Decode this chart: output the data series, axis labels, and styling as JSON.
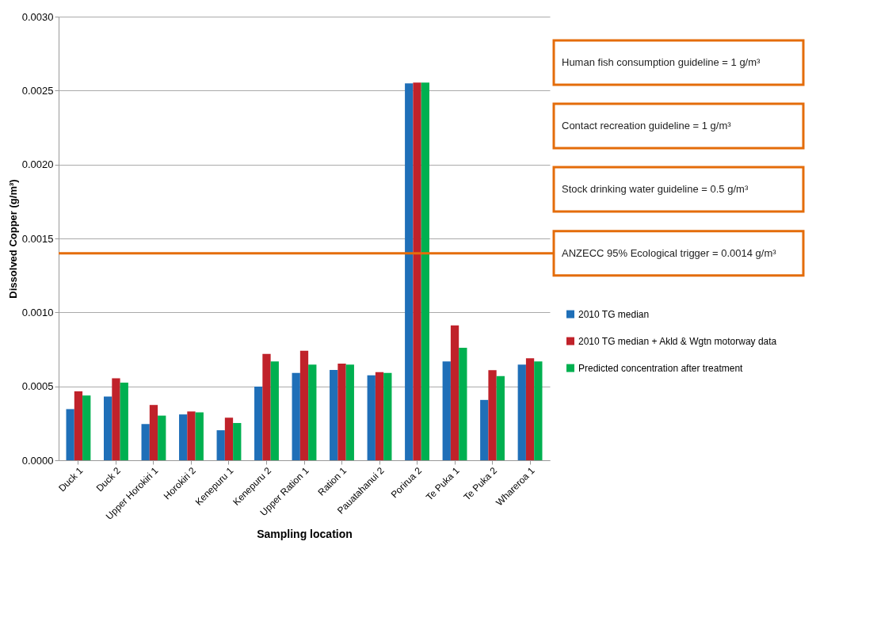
{
  "chart_data": {
    "type": "bar",
    "xlabel": "Sampling location",
    "ylabel": "Dissolved Copper (g/m³)",
    "categories": [
      "Duck 1",
      "Duck 2",
      "Upper Horokiri 1",
      "Horokiri 2",
      "Kenepuru 1",
      "Kenepuru 2",
      "Upper Ration 1",
      "Ration 1",
      "Pauatahanui 2",
      "Porirua 2",
      "Te Puka 1",
      "Te Puka 2",
      "Whareroa 1"
    ],
    "series": [
      {
        "name": "2010 TG median",
        "color": "#1f6fb8",
        "values": [
          0.000346,
          0.000431,
          0.000245,
          0.00031,
          0.000203,
          0.000498,
          0.00059,
          0.000611,
          0.000575,
          0.002549,
          0.000668,
          0.000408,
          0.000647
        ]
      },
      {
        "name": "2010 TG median + Akld & Wgtn motorway data",
        "color": "#c0222a",
        "values": [
          0.000466,
          0.000554,
          0.000374,
          0.00033,
          0.000288,
          0.000719,
          0.00074,
          0.000654,
          0.000596,
          0.002554,
          0.000912,
          0.000609,
          0.00069
        ]
      },
      {
        "name": "Predicted concentration after treatment",
        "color": "#00b050",
        "values": [
          0.000438,
          0.000525,
          0.000302,
          0.000324,
          0.000252,
          0.000668,
          0.000647,
          0.000647,
          0.00059,
          0.002554,
          0.000761,
          0.000569,
          0.000668
        ]
      }
    ],
    "ylim": [
      0,
      0.003
    ],
    "yticks": [
      {
        "value": 0,
        "label": "0.0000"
      },
      {
        "value": 0.0005,
        "label": "0.0005"
      },
      {
        "value": 0.001,
        "label": "0.0010"
      },
      {
        "value": 0.0015,
        "label": "0.0015"
      },
      {
        "value": 0.002,
        "label": "0.0020"
      },
      {
        "value": 0.0025,
        "label": "0.0025"
      },
      {
        "value": 0.003,
        "label": "0.0030"
      }
    ],
    "grid": "y",
    "legend": "right",
    "ref_lines": [
      {
        "axis": "y",
        "value": 0.0014,
        "label": "ANZECC 95% Ecological trigger = 0.0014 g/m³",
        "color": "#e46c0a",
        "line_style": "solid"
      }
    ],
    "annotations": [
      "Human fish consumption guideline = 1 g/m³",
      "Contact recreation guideline = 1 g/m³",
      "Stock drinking water guideline = 0.5 g/m³"
    ]
  }
}
